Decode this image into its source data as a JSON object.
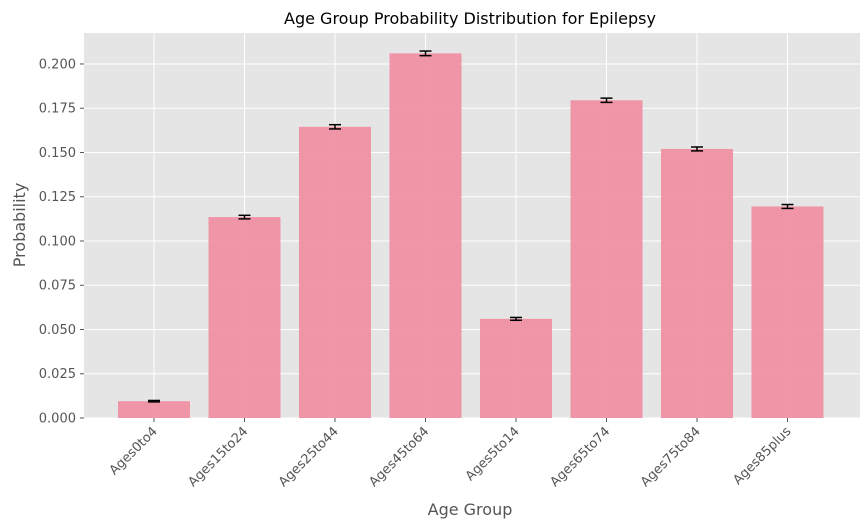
{
  "chart_data": {
    "type": "bar",
    "title": "Age Group Probability Distribution for Epilepsy",
    "xlabel": "Age Group",
    "ylabel": "Probability",
    "categories": [
      "Ages0to4",
      "Ages15to24",
      "Ages25to44",
      "Ages45to64",
      "Ages5to14",
      "Ages65to74",
      "Ages75to84",
      "Ages85plus"
    ],
    "values": [
      0.0095,
      0.1135,
      0.1645,
      0.206,
      0.056,
      0.1795,
      0.152,
      0.1195
    ],
    "errors": [
      0.0004,
      0.001,
      0.0012,
      0.0013,
      0.0008,
      0.0012,
      0.0011,
      0.0011
    ],
    "ylim": [
      0,
      0.2175
    ],
    "yticks": [
      "0.000",
      "0.025",
      "0.050",
      "0.075",
      "0.100",
      "0.125",
      "0.150",
      "0.175",
      "0.200"
    ],
    "grid": true,
    "bar_color": "#f08ca0",
    "background_color": "#e5e5e5",
    "errorbar_color": "#000000"
  }
}
